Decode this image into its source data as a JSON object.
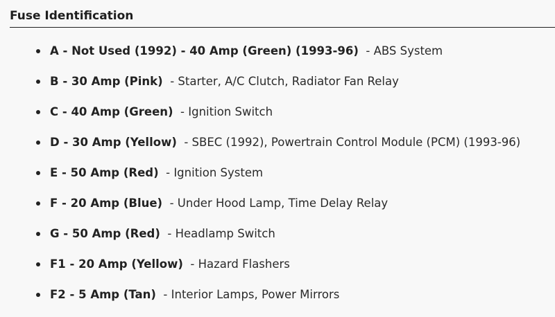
{
  "heading": "Fuse Identification",
  "items": [
    {
      "label": "A - Not Used (1992)  - 40 Amp (Green) (1993-96)",
      "desc": " - ABS System"
    },
    {
      "label": "B - 30 Amp (Pink)",
      "desc": " - Starter, A/C Clutch, Radiator Fan Relay"
    },
    {
      "label": "C - 40 Amp (Green)",
      "desc": " - Ignition Switch"
    },
    {
      "label": "D - 30 Amp (Yellow)",
      "desc": " - SBEC (1992), Powertrain Control Module (PCM) (1993-96)"
    },
    {
      "label": "E - 50 Amp (Red)",
      "desc": " - Ignition System"
    },
    {
      "label": "F - 20 Amp (Blue)",
      "desc": " - Under Hood Lamp, Time Delay Relay"
    },
    {
      "label": "G - 50 Amp (Red)",
      "desc": " - Headlamp Switch"
    },
    {
      "label": "F1 - 20 Amp (Yellow)",
      "desc": " - Hazard Flashers"
    },
    {
      "label": "F2 - 5 Amp (Tan)",
      "desc": " - Interior Lamps, Power Mirrors"
    }
  ]
}
